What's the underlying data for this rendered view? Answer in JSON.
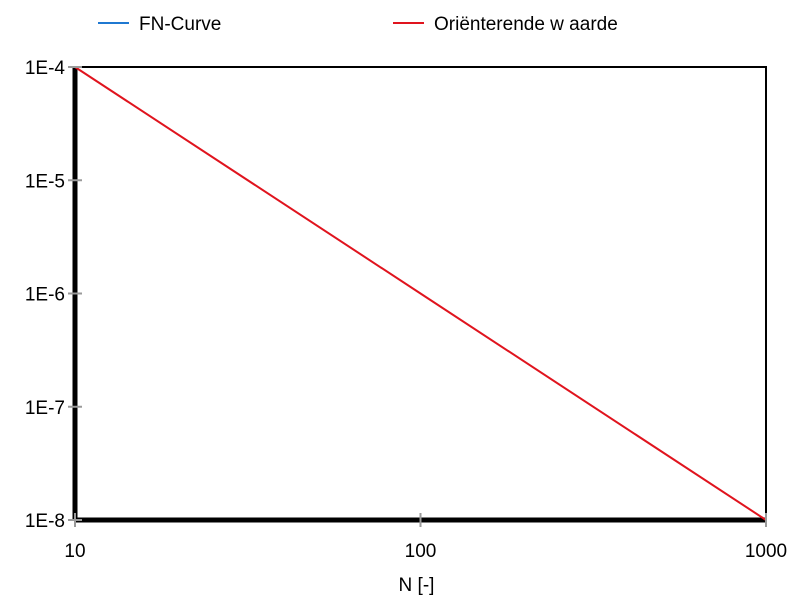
{
  "chart_data": {
    "type": "line",
    "title": "",
    "xlabel": "N [-]",
    "ylabel": "",
    "x_scale": "log",
    "y_scale": "log",
    "xlim": [
      10,
      1000
    ],
    "ylim": [
      1e-08,
      0.0001
    ],
    "x_ticks": [
      {
        "value": 10,
        "label": "10"
      },
      {
        "value": 100,
        "label": "100"
      },
      {
        "value": 1000,
        "label": "1000"
      }
    ],
    "y_ticks": [
      {
        "value": 0.0001,
        "label": "1E-4"
      },
      {
        "value": 1e-05,
        "label": "1E-5"
      },
      {
        "value": 1e-06,
        "label": "1E-6"
      },
      {
        "value": 1e-07,
        "label": "1E-7"
      },
      {
        "value": 1e-08,
        "label": "1E-8"
      }
    ],
    "grid": false,
    "legend_position": "top",
    "series": [
      {
        "name": "FN-Curve",
        "color": "#1f78d1",
        "x": [],
        "y": []
      },
      {
        "name": "Oriënterende w aarde",
        "color": "#e0141e",
        "x": [
          10,
          100,
          1000
        ],
        "y": [
          0.0001,
          1e-06,
          1e-08
        ]
      }
    ]
  }
}
